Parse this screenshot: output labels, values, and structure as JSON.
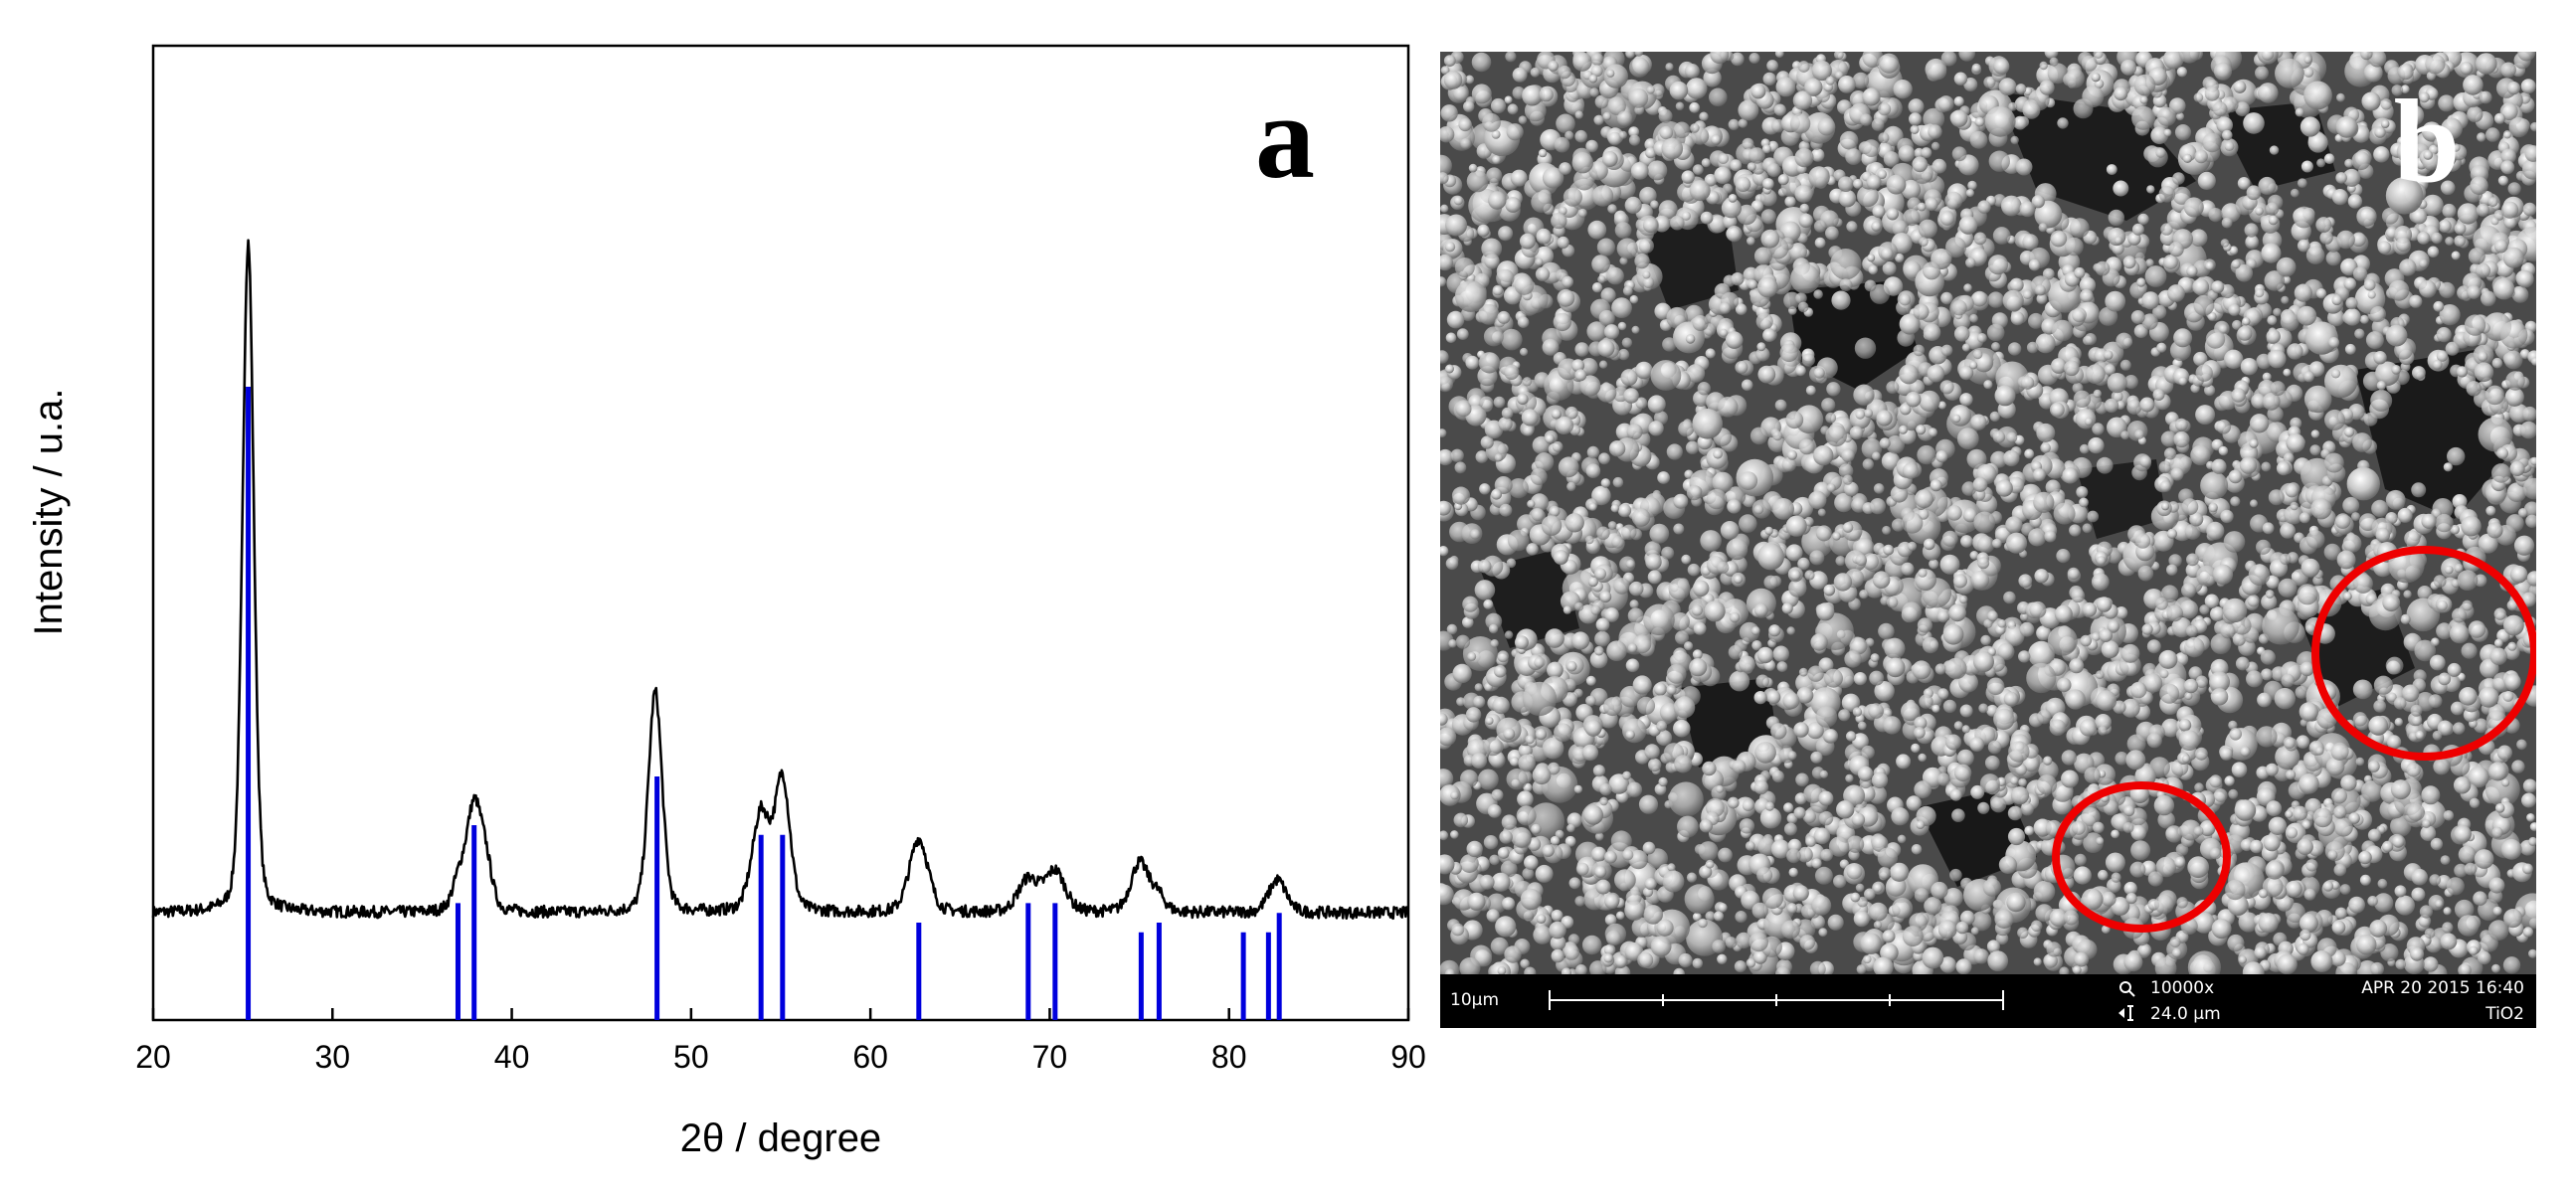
{
  "panel_a": {
    "letter": "a",
    "chart_data": {
      "type": "line",
      "title": "",
      "xlabel": "2θ / degree",
      "ylabel": "Intensity / u.a.",
      "xlim": [
        20,
        90
      ],
      "x_ticks": [
        20,
        30,
        40,
        50,
        60,
        70,
        80,
        90
      ],
      "y_ticks_shown": false,
      "grid": false,
      "legend": "none",
      "series": [
        {
          "type": "line",
          "color": "#000000",
          "baseline": 0.11,
          "noise": 0.006,
          "peaks": [
            {
              "x": 25.3,
              "height": 0.82,
              "width": 0.45
            },
            {
              "x": 37.0,
              "height": 0.03,
              "width": 0.5
            },
            {
              "x": 37.9,
              "height": 0.13,
              "width": 0.65
            },
            {
              "x": 38.6,
              "height": 0.04,
              "width": 0.5
            },
            {
              "x": 48.0,
              "height": 0.27,
              "width": 0.55
            },
            {
              "x": 53.9,
              "height": 0.12,
              "width": 0.7
            },
            {
              "x": 55.1,
              "height": 0.16,
              "width": 0.6
            },
            {
              "x": 62.7,
              "height": 0.09,
              "width": 0.75
            },
            {
              "x": 68.8,
              "height": 0.04,
              "width": 0.8
            },
            {
              "x": 70.3,
              "height": 0.05,
              "width": 0.8
            },
            {
              "x": 75.0,
              "height": 0.06,
              "width": 0.7
            },
            {
              "x": 76.0,
              "height": 0.02,
              "width": 0.6
            },
            {
              "x": 82.7,
              "height": 0.04,
              "width": 0.7
            }
          ]
        },
        {
          "type": "stick",
          "color": "#0000dd",
          "x": [
            25.3,
            37.0,
            37.9,
            48.1,
            53.9,
            55.1,
            62.7,
            68.8,
            70.3,
            75.1,
            76.1,
            80.8,
            82.2,
            82.8
          ],
          "values": [
            0.65,
            0.12,
            0.2,
            0.25,
            0.19,
            0.19,
            0.1,
            0.12,
            0.12,
            0.09,
            0.1,
            0.09,
            0.09,
            0.11
          ]
        }
      ]
    }
  },
  "panel_b": {
    "letter": "b",
    "info_bar": {
      "scale_label": "10µm",
      "magnification": "10000x",
      "field_width": "24.0 µm",
      "datetime": "APR 20 2015 16:40",
      "sample": "TiO2",
      "magnifier_icon": "magnifier-icon",
      "field_icon": "field-width-icon"
    },
    "highlight_color": "#ee0000"
  }
}
